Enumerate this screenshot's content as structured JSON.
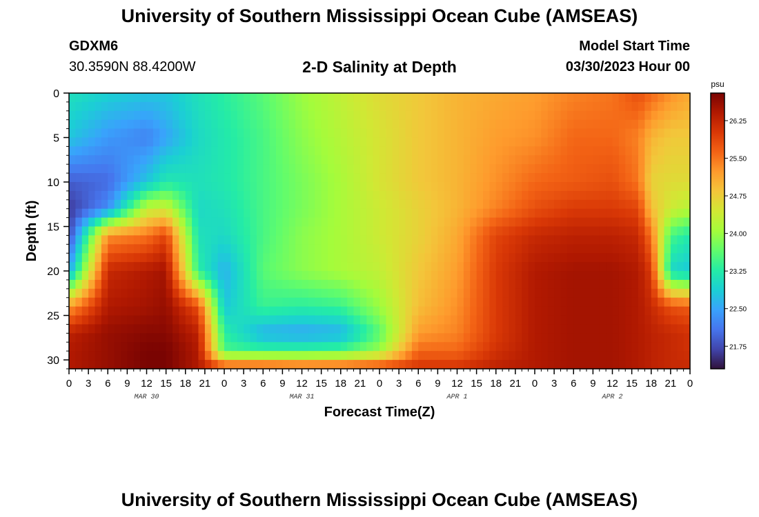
{
  "header": {
    "title": "University of Southern Mississippi Ocean Cube (AMSEAS)",
    "station": "GDXM6",
    "coords": "30.3590N  88.4200W",
    "plot_title": "2-D Salinity at Depth",
    "model_start_label": "Model Start Time",
    "model_start_value": "03/30/2023 Hour 00"
  },
  "footer": {
    "title": "University of Southern Mississippi Ocean Cube (AMSEAS)"
  },
  "chart_data": {
    "type": "heatmap",
    "title": "2-D Salinity at Depth",
    "xlabel": "Forecast Time(Z)",
    "ylabel": "Depth (ft)",
    "x_range_hours": [
      0,
      96
    ],
    "y_range_ft": [
      0,
      31
    ],
    "y_inverted": true,
    "x_tick_labels": [
      "0",
      "3",
      "6",
      "9",
      "12",
      "15",
      "18",
      "21",
      "0",
      "3",
      "6",
      "9",
      "12",
      "15",
      "18",
      "21",
      "0",
      "3",
      "6",
      "9",
      "12",
      "15",
      "18",
      "21",
      "0",
      "3",
      "6",
      "9",
      "12",
      "15",
      "18",
      "21",
      "0"
    ],
    "y_ticks": [
      0,
      5,
      10,
      15,
      20,
      25,
      30
    ],
    "day_labels": [
      {
        "hour": 12,
        "label": "MAR 30"
      },
      {
        "hour": 36,
        "label": "MAR 31"
      },
      {
        "hour": 60,
        "label": "APR 1"
      },
      {
        "hour": 84,
        "label": "APR 2"
      }
    ],
    "colorbar": {
      "unit": "psu",
      "min": 21.3,
      "max": 26.8,
      "ticks": [
        26.25,
        25.5,
        24.75,
        24.0,
        23.25,
        22.5,
        21.75
      ],
      "tick_labels": [
        "26.25",
        "25.50",
        "24.75",
        "24.00",
        "23.25",
        "22.50",
        "21.75"
      ]
    },
    "colormap": [
      "#30123b",
      "#4145ab",
      "#4675ed",
      "#39a2fc",
      "#1bcfd4",
      "#24eca6",
      "#61fc6c",
      "#a4fc3b",
      "#d1e834",
      "#f3c63a",
      "#fe9b2d",
      "#f36315",
      "#d93806",
      "#b11901",
      "#7a0402"
    ],
    "salinity_psu": {
      "depths_ft": [
        0,
        5,
        10,
        13,
        16,
        20,
        24,
        27,
        29,
        31
      ],
      "hours": [
        0,
        6,
        12,
        15,
        20,
        24,
        30,
        36,
        42,
        48,
        54,
        60,
        66,
        72,
        78,
        84,
        88,
        90,
        93,
        96
      ],
      "values": [
        [
          23.1,
          22.9,
          22.8,
          22.8,
          23.1,
          23.3,
          23.6,
          24.0,
          24.3,
          24.6,
          24.8,
          25.0,
          25.1,
          25.2,
          25.4,
          25.5,
          25.8,
          25.6,
          25.3,
          25.1
        ],
        [
          22.8,
          22.4,
          22.2,
          22.5,
          23.0,
          23.2,
          23.5,
          23.9,
          24.2,
          24.5,
          24.8,
          25.0,
          25.2,
          25.3,
          25.6,
          25.6,
          25.4,
          25.0,
          24.8,
          24.8
        ],
        [
          21.9,
          22.0,
          22.8,
          23.2,
          23.1,
          23.2,
          23.5,
          23.8,
          24.1,
          24.5,
          24.8,
          25.0,
          25.3,
          25.6,
          25.7,
          25.8,
          25.5,
          24.7,
          24.6,
          24.6
        ],
        [
          21.6,
          22.3,
          24.3,
          24.4,
          23.0,
          23.1,
          23.5,
          23.8,
          24.1,
          24.4,
          24.7,
          25.0,
          25.4,
          25.8,
          26.0,
          26.0,
          25.9,
          24.9,
          24.4,
          24.2
        ],
        [
          21.7,
          25.3,
          25.5,
          25.9,
          23.1,
          23.0,
          23.5,
          23.9,
          24.1,
          24.4,
          24.7,
          25.1,
          25.9,
          26.2,
          26.3,
          26.3,
          26.2,
          25.5,
          23.5,
          23.2
        ],
        [
          22.5,
          26.2,
          26.4,
          26.5,
          23.3,
          22.6,
          23.6,
          23.9,
          24.1,
          24.3,
          24.8,
          25.2,
          26.0,
          26.4,
          26.5,
          26.5,
          26.4,
          26.0,
          23.0,
          22.8
        ],
        [
          25.2,
          26.4,
          26.5,
          26.6,
          25.8,
          22.8,
          23.4,
          23.3,
          23.4,
          24.0,
          24.9,
          25.3,
          26.0,
          26.4,
          26.5,
          26.5,
          26.4,
          26.2,
          25.8,
          25.7
        ],
        [
          26.3,
          26.6,
          26.7,
          26.7,
          26.3,
          23.3,
          22.6,
          22.5,
          22.6,
          23.6,
          25.2,
          25.4,
          26.0,
          26.4,
          26.5,
          26.5,
          26.4,
          26.3,
          26.2,
          26.1
        ],
        [
          26.4,
          26.6,
          26.8,
          26.8,
          26.4,
          23.5,
          23.4,
          23.4,
          23.5,
          24.0,
          25.6,
          25.6,
          26.1,
          26.4,
          26.5,
          26.5,
          26.4,
          26.3,
          26.2,
          26.1
        ],
        [
          26.4,
          26.6,
          26.8,
          26.8,
          26.4,
          26.0,
          26.0,
          25.9,
          25.9,
          26.0,
          26.1,
          26.1,
          26.3,
          26.4,
          26.5,
          26.5,
          26.4,
          26.3,
          26.2,
          26.2
        ]
      ]
    }
  }
}
